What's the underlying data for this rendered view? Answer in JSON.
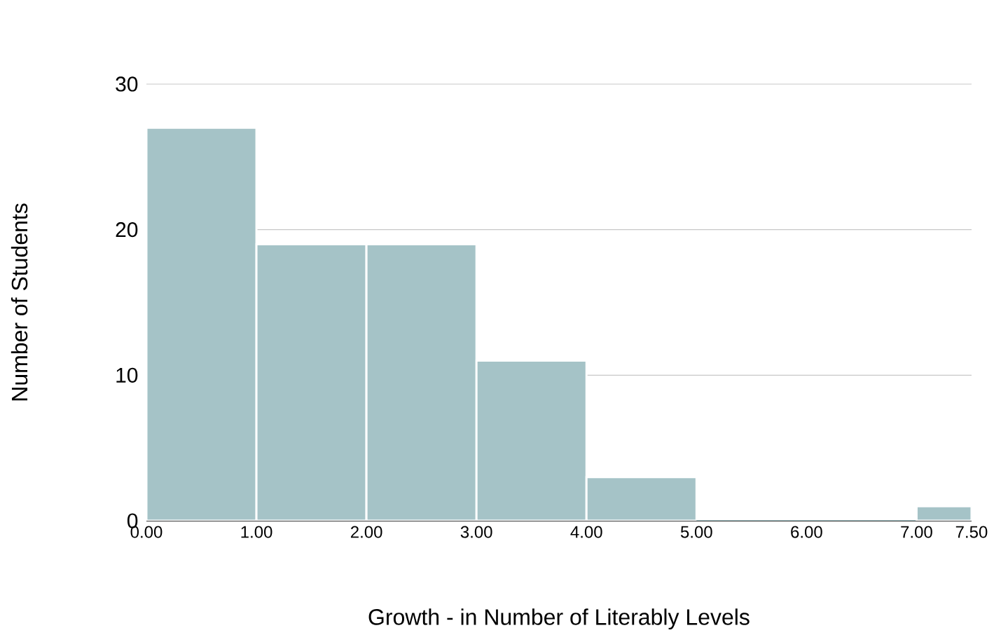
{
  "chart_data": {
    "type": "histogram",
    "xlabel": "Growth - in Number of Literably Levels",
    "ylabel": "Number of Students",
    "bins": [
      0,
      1,
      2,
      3,
      4,
      5,
      7,
      7.5
    ],
    "values": [
      27,
      19,
      19,
      11,
      3,
      0,
      1
    ],
    "color": "#a5c3c7",
    "xlim": [
      0,
      7.5
    ],
    "xticks": [
      {
        "value": 0,
        "label": "0.00"
      },
      {
        "value": 1,
        "label": "1.00"
      },
      {
        "value": 2,
        "label": "2.00"
      },
      {
        "value": 3,
        "label": "3.00"
      },
      {
        "value": 4,
        "label": "4.00"
      },
      {
        "value": 5,
        "label": "5.00"
      },
      {
        "value": 6,
        "label": "6.00"
      },
      {
        "value": 7,
        "label": "7.00"
      },
      {
        "value": 7.5,
        "label": "7.50"
      }
    ],
    "ylim": [
      0,
      30
    ],
    "yticks": [
      0,
      10,
      20,
      30
    ],
    "grid": "y"
  }
}
